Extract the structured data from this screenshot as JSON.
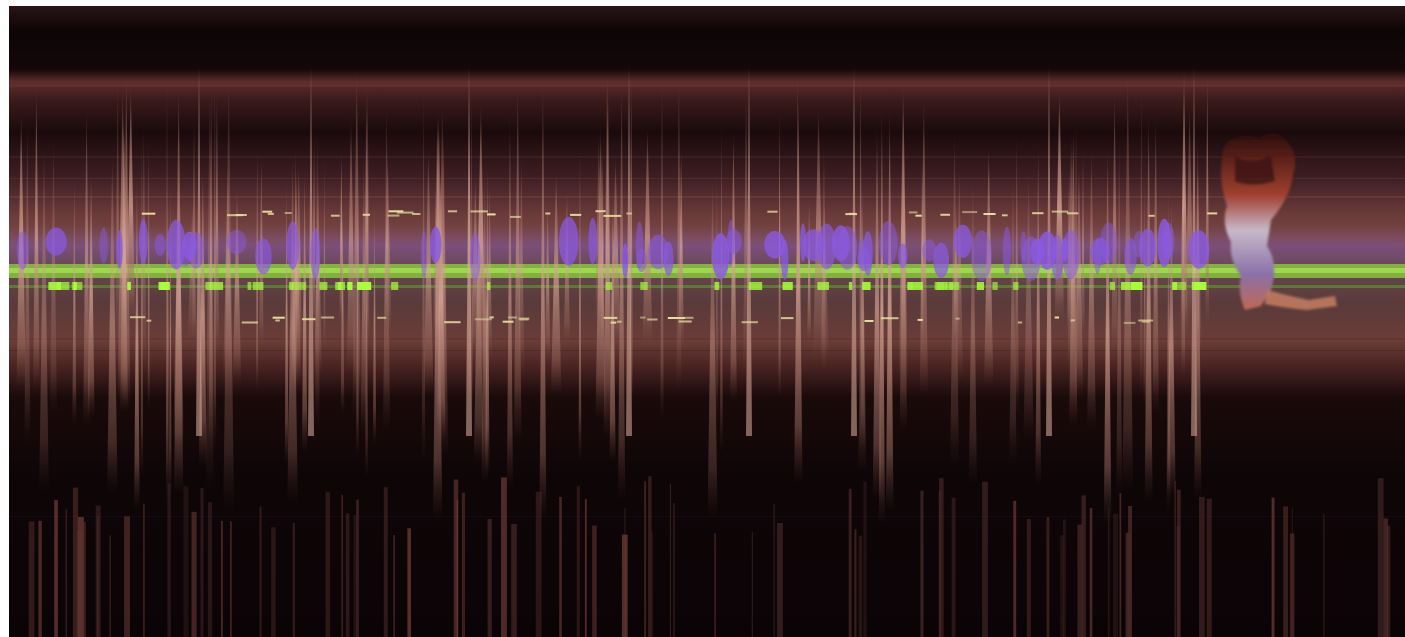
{
  "image": {
    "subject": "slit-scan-streaks",
    "palette": {
      "background": "#0e0507",
      "band_top": "#5a2a2a",
      "band_mauve": "#7a4545",
      "streak": "#c08a7a",
      "streak_highlight": "#e0b0a0",
      "violet": "#7a52c8",
      "green": "#8cd43c",
      "bright_green": "#a8ff3c",
      "gold_tick": "#e8e0a0",
      "figure_dark": "#3a1410",
      "figure_red": "#a04030",
      "figure_pale": "#c8b8c8"
    }
  }
}
